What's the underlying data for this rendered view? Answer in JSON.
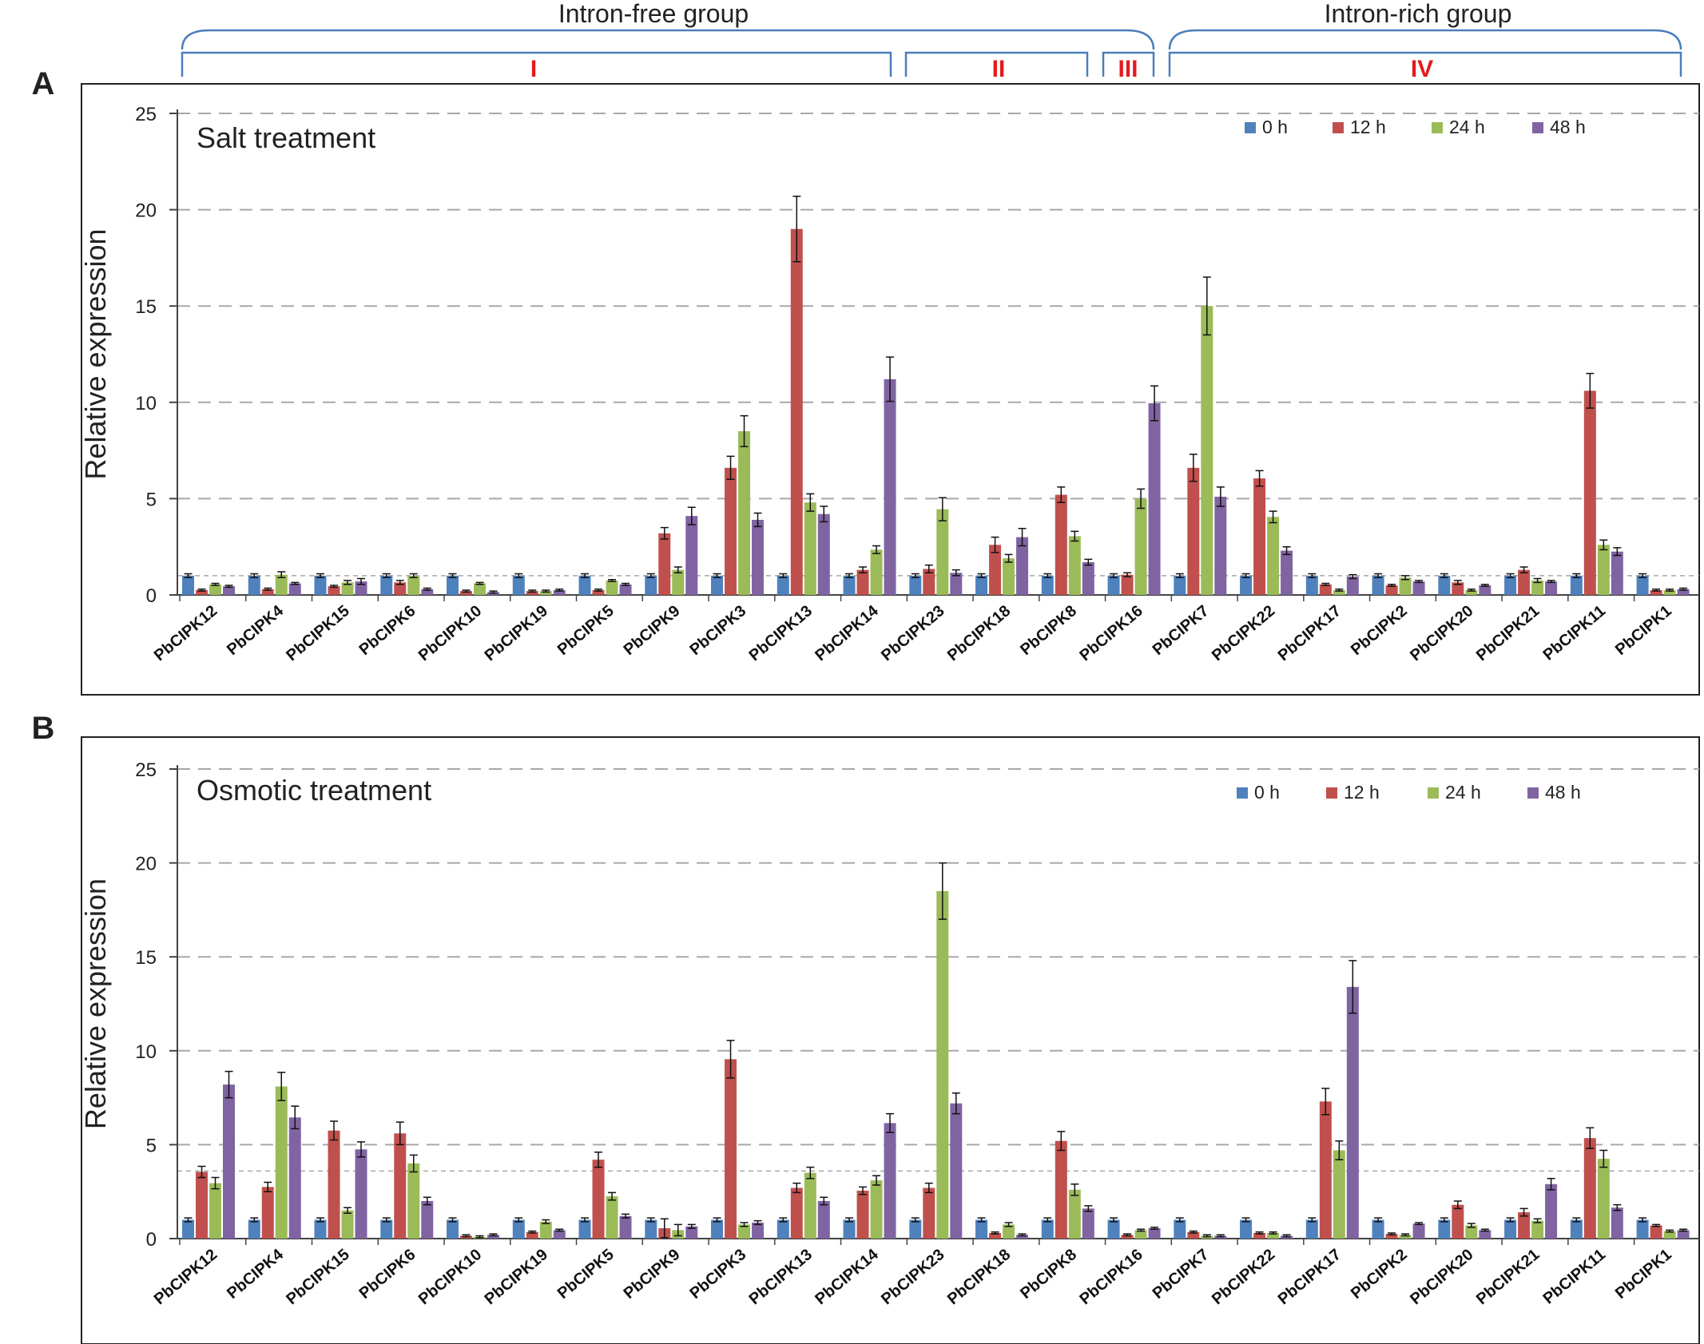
{
  "figure": {
    "groups": [
      {
        "label": "Intron-free group"
      },
      {
        "label": "Intron-rich group"
      }
    ],
    "subgroups": [
      {
        "label": "I"
      },
      {
        "label": "II"
      },
      {
        "label": "III"
      },
      {
        "label": "IV"
      }
    ]
  },
  "colors": {
    "0 h": "#4f81bd",
    "12 h": "#c0504d",
    "24 h": "#9bbb59",
    "48 h": "#8064a2",
    "subgroup_label": "#e31a1c",
    "bracket": "#4a7ebb"
  },
  "chart_data": [
    {
      "type": "bar",
      "panel_label": "A",
      "title": "Salt treatment",
      "xlabel": "",
      "ylabel": "Relative expression",
      "ylim": [
        0,
        25
      ],
      "yticks": [
        0,
        5,
        10,
        15,
        20,
        25
      ],
      "grid": true,
      "reference_line": 1,
      "legend_position": "top-right",
      "categories": [
        "PbCIPK12",
        "PbCIPK4",
        "PbCIPK15",
        "PbCIPK6",
        "PbCIPK10",
        "PbCIPK19",
        "PbCIPK5",
        "PbCIPK9",
        "PbCIPK3",
        "PbCIPK13",
        "PbCIPK14",
        "PbCIPK23",
        "PbCIPK18",
        "PbCIPK8",
        "PbCIPK16",
        "PbCIPK7",
        "PbCIPK22",
        "PbCIPK17",
        "PbCIPK2",
        "PbCIPK20",
        "PbCIPK21",
        "PbCIPK11",
        "PbCIPK1"
      ],
      "series": [
        {
          "name": "0 h",
          "values": [
            1,
            1,
            1,
            1,
            1,
            1,
            1,
            1,
            1,
            1,
            1,
            1,
            1,
            1,
            1,
            1,
            1,
            1,
            1,
            1,
            1,
            1,
            1
          ],
          "errors": [
            0.1,
            0.1,
            0.1,
            0.1,
            0.1,
            0.1,
            0.1,
            0.1,
            0.1,
            0.1,
            0.1,
            0.1,
            0.1,
            0.1,
            0.1,
            0.1,
            0.1,
            0.1,
            0.1,
            0.1,
            0.1,
            0.1,
            0.1
          ]
        },
        {
          "name": "12 h",
          "values": [
            0.25,
            0.3,
            0.45,
            0.65,
            0.2,
            0.2,
            0.25,
            3.2,
            6.6,
            19,
            1.3,
            1.35,
            2.6,
            5.2,
            1.05,
            6.6,
            6.05,
            0.55,
            0.5,
            0.65,
            1.3,
            10.6,
            0.25
          ],
          "errors": [
            0.05,
            0.05,
            0.05,
            0.1,
            0.05,
            0.05,
            0.05,
            0.3,
            0.6,
            1.7,
            0.15,
            0.2,
            0.4,
            0.4,
            0.1,
            0.7,
            0.4,
            0.05,
            0.05,
            0.1,
            0.15,
            0.9,
            0.05
          ]
        },
        {
          "name": "24 h",
          "values": [
            0.55,
            1.05,
            0.65,
            1.0,
            0.6,
            0.2,
            0.75,
            1.3,
            8.5,
            4.8,
            2.35,
            4.45,
            1.9,
            3.05,
            5.0,
            15,
            4.05,
            0.25,
            0.9,
            0.25,
            0.75,
            2.6,
            0.25
          ],
          "errors": [
            0.05,
            0.15,
            0.1,
            0.1,
            0.05,
            0.05,
            0.05,
            0.15,
            0.8,
            0.45,
            0.2,
            0.6,
            0.2,
            0.25,
            0.5,
            1.5,
            0.3,
            0.05,
            0.1,
            0.05,
            0.1,
            0.25,
            0.05
          ]
        },
        {
          "name": "48 h",
          "values": [
            0.45,
            0.6,
            0.7,
            0.3,
            0.15,
            0.25,
            0.55,
            4.1,
            3.9,
            4.2,
            11.2,
            1.15,
            3.0,
            1.7,
            9.95,
            5.1,
            2.3,
            0.95,
            0.7,
            0.5,
            0.7,
            2.25,
            0.3
          ],
          "errors": [
            0.05,
            0.05,
            0.15,
            0.05,
            0.05,
            0.05,
            0.05,
            0.45,
            0.35,
            0.4,
            1.15,
            0.15,
            0.45,
            0.15,
            0.9,
            0.5,
            0.2,
            0.1,
            0.05,
            0.05,
            0.05,
            0.2,
            0.05
          ]
        }
      ]
    },
    {
      "type": "bar",
      "panel_label": "B",
      "title": "Osmotic treatment",
      "xlabel": "",
      "ylabel": "Relative expression",
      "ylim": [
        0,
        25
      ],
      "yticks": [
        0,
        5,
        10,
        15,
        20,
        25
      ],
      "grid": true,
      "reference_line": 3.6,
      "legend_position": "top-right",
      "categories": [
        "PbCIPK12",
        "PbCIPK4",
        "PbCIPK15",
        "PbCIPK6",
        "PbCIPK10",
        "PbCIPK19",
        "PbCIPK5",
        "PbCIPK9",
        "PbCIPK3",
        "PbCIPK13",
        "PbCIPK14",
        "PbCIPK23",
        "PbCIPK18",
        "PbCIPK8",
        "PbCIPK16",
        "PbCIPK7",
        "PbCIPK22",
        "PbCIPK17",
        "PbCIPK2",
        "PbCIPK20",
        "PbCIPK21",
        "PbCIPK11",
        "PbCIPK1"
      ],
      "series": [
        {
          "name": "0 h",
          "values": [
            1,
            1,
            1,
            1,
            1,
            1,
            1,
            1,
            1,
            1,
            1,
            1,
            1,
            1,
            1,
            1,
            1,
            1,
            1,
            1,
            1,
            1,
            1
          ],
          "errors": [
            0.1,
            0.1,
            0.1,
            0.1,
            0.1,
            0.1,
            0.1,
            0.1,
            0.1,
            0.1,
            0.1,
            0.1,
            0.1,
            0.1,
            0.1,
            0.1,
            0.1,
            0.1,
            0.1,
            0.1,
            0.1,
            0.1,
            0.1
          ]
        },
        {
          "name": "12 h",
          "values": [
            3.55,
            2.75,
            5.75,
            5.6,
            0.15,
            0.35,
            4.2,
            0.55,
            9.55,
            2.7,
            2.55,
            2.7,
            0.3,
            5.2,
            0.2,
            0.35,
            0.3,
            7.3,
            0.25,
            1.8,
            1.4,
            5.35,
            0.7
          ],
          "errors": [
            0.3,
            0.25,
            0.5,
            0.6,
            0.05,
            0.05,
            0.4,
            0.5,
            1.0,
            0.25,
            0.2,
            0.25,
            0.05,
            0.5,
            0.05,
            0.05,
            0.05,
            0.7,
            0.05,
            0.2,
            0.2,
            0.55,
            0.05
          ]
        },
        {
          "name": "24 h",
          "values": [
            2.95,
            8.1,
            1.5,
            4.0,
            0.1,
            0.9,
            2.25,
            0.45,
            0.75,
            3.5,
            3.1,
            18.5,
            0.75,
            2.6,
            0.45,
            0.15,
            0.3,
            4.7,
            0.2,
            0.7,
            0.95,
            4.25,
            0.4
          ],
          "errors": [
            0.3,
            0.75,
            0.15,
            0.45,
            0.05,
            0.1,
            0.2,
            0.3,
            0.1,
            0.3,
            0.25,
            1.5,
            0.1,
            0.3,
            0.05,
            0.05,
            0.05,
            0.5,
            0.05,
            0.1,
            0.1,
            0.45,
            0.05
          ]
        },
        {
          "name": "48 h",
          "values": [
            8.2,
            6.45,
            4.75,
            2.0,
            0.2,
            0.45,
            1.2,
            0.65,
            0.85,
            2.0,
            6.15,
            7.2,
            0.2,
            1.6,
            0.55,
            0.15,
            0.15,
            13.4,
            0.8,
            0.45,
            2.9,
            1.65,
            0.45
          ],
          "errors": [
            0.7,
            0.6,
            0.4,
            0.2,
            0.05,
            0.05,
            0.1,
            0.1,
            0.1,
            0.2,
            0.5,
            0.55,
            0.05,
            0.15,
            0.05,
            0.05,
            0.05,
            1.4,
            0.05,
            0.05,
            0.3,
            0.15,
            0.05
          ]
        }
      ]
    }
  ]
}
